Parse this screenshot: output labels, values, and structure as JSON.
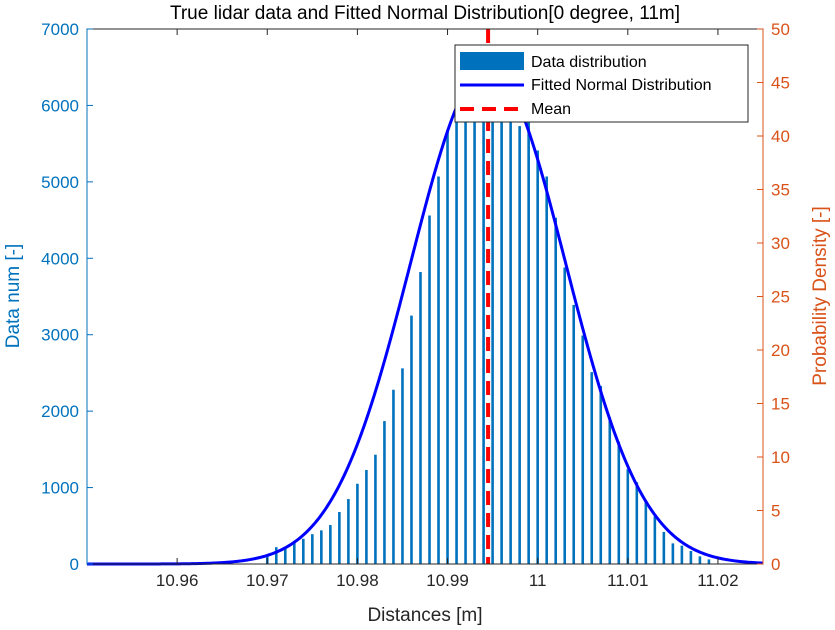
{
  "chart_data": {
    "type": "bar",
    "title": "True lidar data and Fitted Normal Distribution[0 degree, 11m]",
    "xlabel": "Distances [m]",
    "ylabel_left": "Data num [-]",
    "ylabel_right": "Probability Density [-]",
    "xlim": [
      10.95,
      11.025
    ],
    "ylim_left": [
      0,
      7000
    ],
    "ylim_right": [
      0,
      50
    ],
    "x_ticks": [
      10.96,
      10.97,
      10.98,
      10.99,
      11.0,
      11.01,
      11.02
    ],
    "x_tick_labels": [
      "10.96",
      "10.97",
      "10.98",
      "10.99",
      "11",
      "11.01",
      "11.02"
    ],
    "y_left_ticks": [
      0,
      1000,
      2000,
      3000,
      4000,
      5000,
      6000,
      7000
    ],
    "y_left_tick_labels": [
      "0",
      "1000",
      "2000",
      "3000",
      "4000",
      "5000",
      "6000",
      "7000"
    ],
    "y_right_ticks": [
      0,
      5,
      10,
      15,
      20,
      25,
      30,
      35,
      40,
      45,
      50
    ],
    "y_right_tick_labels": [
      "0",
      "5",
      "10",
      "15",
      "20",
      "25",
      "30",
      "35",
      "40",
      "45",
      "50"
    ],
    "histogram": {
      "name": "Data distribution",
      "bin_width": 0.001,
      "x": [
        10.97,
        10.971,
        10.972,
        10.973,
        10.974,
        10.975,
        10.976,
        10.977,
        10.978,
        10.979,
        10.98,
        10.981,
        10.982,
        10.983,
        10.984,
        10.985,
        10.986,
        10.987,
        10.988,
        10.989,
        10.99,
        10.991,
        10.992,
        10.993,
        10.994,
        10.995,
        10.996,
        10.997,
        10.998,
        10.999,
        11.0,
        11.001,
        11.002,
        11.003,
        11.004,
        11.005,
        11.006,
        11.007,
        11.008,
        11.009,
        11.01,
        11.011,
        11.012,
        11.013,
        11.014,
        11.015,
        11.016,
        11.017,
        11.018,
        11.019
      ],
      "values": [
        120,
        220,
        210,
        290,
        330,
        390,
        440,
        510,
        680,
        850,
        1050,
        1230,
        1430,
        1870,
        2280,
        2560,
        3250,
        3820,
        4560,
        5070,
        5680,
        5830,
        6310,
        6090,
        6080,
        6040,
        6050,
        6020,
        5730,
        5830,
        5410,
        5070,
        4530,
        3880,
        3390,
        2990,
        2510,
        2330,
        1920,
        1600,
        1240,
        1070,
        820,
        620,
        420,
        270,
        240,
        170,
        100,
        60
      ]
    },
    "normal_fit": {
      "name": "Fitted Normal Distribution",
      "mean": 10.9945,
      "std": 0.0086
    },
    "mean_line": {
      "name": "Mean",
      "x": 10.9945
    },
    "legend": {
      "position": "top-right",
      "entries": [
        "Data distribution",
        "Fitted Normal Distribution",
        "Mean"
      ]
    },
    "grid": false,
    "colors": {
      "left_axis": "#0072BD",
      "right_axis": "#D95319",
      "histogram": "#0072BD",
      "normal_fit": "#0000FF",
      "mean_line": "#FF0000"
    }
  }
}
